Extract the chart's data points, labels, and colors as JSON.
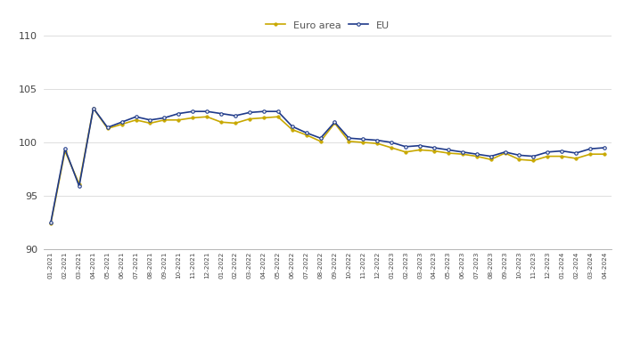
{
  "labels": [
    "01-2021",
    "02-2021",
    "03-2021",
    "04-2021",
    "05-2021",
    "06-2021",
    "07-2021",
    "08-2021",
    "09-2021",
    "10-2021",
    "11-2021",
    "12-2021",
    "01-2022",
    "02-2022",
    "03-2022",
    "04-2022",
    "05-2022",
    "06-2022",
    "07-2022",
    "08-2022",
    "09-2022",
    "10-2022",
    "11-2022",
    "12-2022",
    "01-2023",
    "02-2023",
    "03-2023",
    "04-2023",
    "05-2023",
    "06-2023",
    "07-2023",
    "08-2023",
    "09-2023",
    "10-2023",
    "11-2023",
    "12-2023",
    "01-2024",
    "02-2024",
    "03-2024",
    "04-2024"
  ],
  "euro_area": [
    92.4,
    99.2,
    96.1,
    103.2,
    101.3,
    101.7,
    102.1,
    101.8,
    102.1,
    102.1,
    102.3,
    102.4,
    101.9,
    101.8,
    102.2,
    102.3,
    102.4,
    101.2,
    100.7,
    100.1,
    101.8,
    100.1,
    100.0,
    99.9,
    99.5,
    99.1,
    99.3,
    99.2,
    99.0,
    98.9,
    98.7,
    98.4,
    99.0,
    98.4,
    98.3,
    98.7,
    98.7,
    98.5,
    98.9,
    98.9
  ],
  "eu": [
    92.5,
    99.4,
    95.9,
    103.2,
    101.4,
    101.9,
    102.4,
    102.1,
    102.3,
    102.7,
    102.9,
    102.9,
    102.7,
    102.5,
    102.8,
    102.9,
    102.9,
    101.5,
    100.9,
    100.4,
    101.9,
    100.4,
    100.3,
    100.2,
    100.0,
    99.6,
    99.7,
    99.5,
    99.3,
    99.1,
    98.9,
    98.7,
    99.1,
    98.8,
    98.7,
    99.1,
    99.2,
    99.0,
    99.4,
    99.5
  ],
  "euro_area_color": "#c8a800",
  "eu_color": "#1f3a8a",
  "ylim": [
    90,
    110
  ],
  "yticks": [
    90,
    95,
    100,
    105,
    110
  ],
  "background_color": "#ffffff",
  "grid_color": "#d0d0d0",
  "legend_euro_area": "Euro area",
  "legend_eu": "EU",
  "legend_text_color": "#555555"
}
